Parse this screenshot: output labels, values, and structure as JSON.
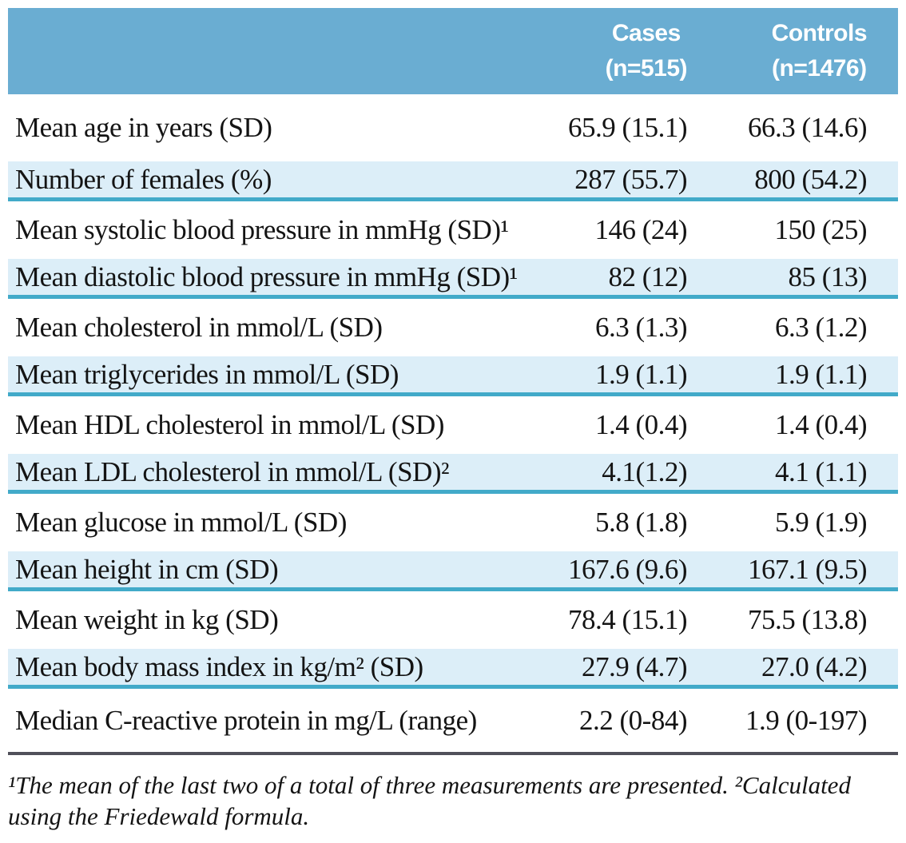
{
  "colors": {
    "header_bg": "#6aadd2",
    "row_highlight": "#dceef8",
    "row_border": "#42aac9",
    "rule": "#50505a",
    "header_text": "#ffffff",
    "body_text": "#141414"
  },
  "table": {
    "columns": [
      {
        "id": "cases",
        "line1": "Cases",
        "line2": "(n=515)"
      },
      {
        "id": "controls",
        "line1": "Controls",
        "line2": "(n=1476)"
      }
    ],
    "rows": [
      {
        "label": "Mean age in years (SD)",
        "cases": "65.9 (15.1)",
        "controls": "66.3 (14.6)",
        "highlight": false
      },
      {
        "label": "Number of females (%)",
        "cases": "287 (55.7)",
        "controls": "800 (54.2)",
        "highlight": true
      },
      {
        "label": "Mean systolic blood pressure in mmHg (SD)¹",
        "cases": "146 (24)",
        "controls": "150 (25)",
        "highlight": false
      },
      {
        "label": "Mean diastolic blood pressure in mmHg (SD)¹",
        "cases": "82 (12)",
        "controls": "85 (13)",
        "highlight": true
      },
      {
        "label": "Mean cholesterol in mmol/L (SD)",
        "cases": "6.3 (1.3)",
        "controls": "6.3 (1.2)",
        "highlight": false
      },
      {
        "label": "Mean triglycerides in mmol/L (SD)",
        "cases": "1.9 (1.1)",
        "controls": "1.9 (1.1)",
        "highlight": true
      },
      {
        "label": "Mean HDL cholesterol in mmol/L (SD)",
        "cases": "1.4 (0.4)",
        "controls": "1.4 (0.4)",
        "highlight": false
      },
      {
        "label": "Mean LDL cholesterol in mmol/L (SD)²",
        "cases": "4.1(1.2)",
        "controls": "4.1 (1.1)",
        "highlight": true
      },
      {
        "label": "Mean glucose in mmol/L (SD)",
        "cases": "5.8 (1.8)",
        "controls": "5.9 (1.9)",
        "highlight": false
      },
      {
        "label": "Mean height in cm (SD)",
        "cases": "167.6 (9.6)",
        "controls": "167.1 (9.5)",
        "highlight": true
      },
      {
        "label": "Mean weight in kg (SD)",
        "cases": "78.4 (15.1)",
        "controls": "75.5 (13.8)",
        "highlight": false
      },
      {
        "label": "Mean body mass index in kg/m² (SD)",
        "cases": "27.9 (4.7)",
        "controls": "27.0 (4.2)",
        "highlight": true
      },
      {
        "label": "Median C-reactive protein in mg/L (range)",
        "cases": "2.2 (0-84)",
        "controls": "1.9 (0-197)",
        "highlight": false
      }
    ]
  },
  "footnote": {
    "text": "¹The mean of the last two of a total of three measurements are presented. ²Calculated using the Friedewald formula.",
    "lines": [
      "¹The mean of the last two of a total of three measurements are presented. ²Calculated",
      "using the Friedewald formula."
    ]
  }
}
